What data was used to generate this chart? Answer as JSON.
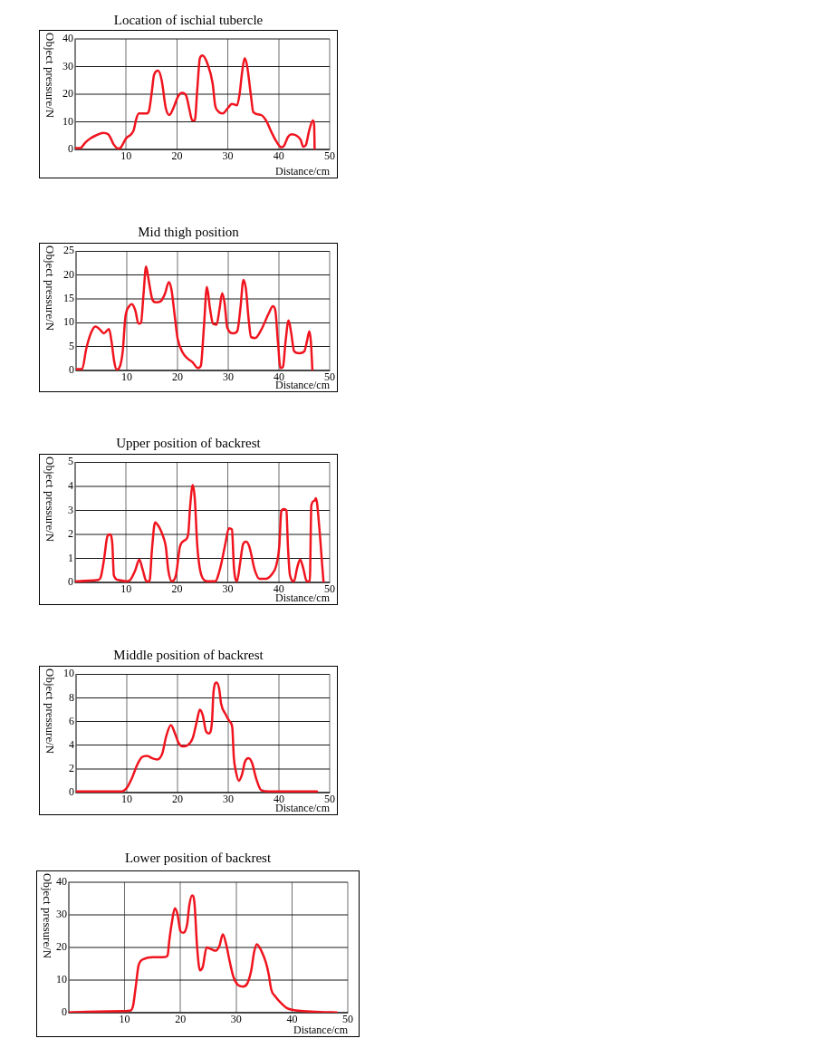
{
  "chart_data": [
    {
      "type": "line",
      "title": "Location of ischial tubercle",
      "xlabel": "Distance/cm",
      "ylabel": "Object pressure/N",
      "color": "#f0141e",
      "grid": true,
      "xlim": [
        0,
        50
      ],
      "xticks": [
        10,
        20,
        30,
        40,
        50
      ],
      "ylim": [
        0,
        40
      ],
      "yticks": [
        0,
        10,
        20,
        30,
        40
      ],
      "x": [
        0,
        1,
        2,
        3,
        4,
        5.5,
        6.5,
        7,
        7.5,
        8.5,
        9,
        10,
        11,
        11.5,
        12,
        12.5,
        14,
        14.5,
        15,
        15.5,
        16.3,
        17,
        17.8,
        18.5,
        19.3,
        20.3,
        21,
        21.8,
        22.5,
        23,
        23.5,
        24,
        24.5,
        25,
        26,
        27,
        27.5,
        28,
        29,
        30,
        30.8,
        31.8,
        32.3,
        32.8,
        33.3,
        33.8,
        34.5,
        35,
        36.5,
        37.5,
        38.5,
        39.5,
        40.5,
        41,
        41.8,
        42.5,
        43.5,
        44.3,
        44.8,
        45.3,
        46,
        46.7,
        46.95,
        47.05
      ],
      "values": [
        0.5,
        0.5,
        2.5,
        4,
        5,
        6,
        5.5,
        4,
        2,
        0.3,
        0.8,
        4,
        5.5,
        7,
        11,
        13,
        13,
        14,
        20,
        27,
        28.5,
        25,
        15,
        12.5,
        15,
        19.5,
        20.5,
        19.5,
        14,
        10.5,
        10.5,
        22,
        33,
        34,
        31,
        24,
        16,
        14,
        13,
        15,
        16.5,
        16,
        20,
        28,
        33,
        30,
        20,
        13.5,
        12.5,
        10.5,
        6.5,
        3,
        0.8,
        1.2,
        4.5,
        5.5,
        5,
        3.5,
        1,
        1.5,
        7,
        10.5,
        9,
        0
      ]
    },
    {
      "type": "line",
      "title": "Mid thigh position",
      "xlabel": "Distance/cm",
      "ylabel": "Object pressure/N",
      "color": "#f0141e",
      "grid": true,
      "xlim": [
        0,
        50
      ],
      "xticks": [
        10,
        20,
        30,
        40,
        50
      ],
      "ylim": [
        0,
        25
      ],
      "yticks": [
        0,
        5,
        10,
        15,
        20,
        25
      ],
      "x": [
        0,
        1.2,
        2,
        3,
        3.8,
        4.5,
        5.5,
        6.5,
        7,
        7.5,
        8,
        8.5,
        9.2,
        9.7,
        10.5,
        11,
        11.7,
        12.3,
        12.8,
        13.3,
        13.8,
        14.3,
        15,
        15.7,
        16.7,
        17.5,
        18.3,
        18.8,
        19.5,
        20,
        21,
        22,
        23,
        24,
        24.6,
        25.2,
        25.8,
        26.4,
        27,
        27.7,
        28.3,
        28.8,
        29.3,
        29.8,
        31,
        31.8,
        32.4,
        33,
        33.5,
        34,
        34.5,
        35.3,
        36.5,
        38,
        38.8,
        39.3,
        39.8,
        40.3,
        40.8,
        41.3,
        41.9,
        42.4,
        43,
        44,
        45,
        45.5,
        46,
        46.3,
        46.6
      ],
      "values": [
        0.3,
        0.3,
        4.5,
        8,
        9.2,
        8.8,
        7.8,
        8.7,
        6,
        2,
        0.2,
        0.5,
        4,
        11,
        13.5,
        13.9,
        12.5,
        9.8,
        10,
        16,
        21.8,
        19,
        15,
        14.3,
        14.5,
        16,
        18.5,
        17,
        11,
        6.8,
        3.8,
        2.5,
        1.7,
        0.5,
        1,
        9,
        17.5,
        13,
        9.8,
        9.6,
        13,
        16.2,
        14,
        9,
        7.8,
        8.3,
        13,
        19,
        17,
        11,
        7,
        6.8,
        8.5,
        12,
        13.5,
        12.5,
        6,
        0.5,
        0.8,
        6,
        10.5,
        8,
        4,
        3.6,
        4,
        6,
        8.2,
        6,
        0
      ]
    },
    {
      "type": "line",
      "title": "Upper position of backrest",
      "xlabel": "Distance/cm",
      "ylabel": "Object pressure/N",
      "color": "#f0141e",
      "grid": true,
      "xlim": [
        0,
        50
      ],
      "xticks": [
        10,
        20,
        30,
        40,
        50
      ],
      "ylim": [
        0,
        5
      ],
      "yticks": [
        0,
        1,
        2,
        3,
        4,
        5
      ],
      "x": [
        0,
        4.5,
        5,
        5.7,
        6.3,
        6.8,
        7.3,
        7.6,
        8.5,
        10,
        10.8,
        11.8,
        12.6,
        13.3,
        14,
        14.6,
        15.1,
        15.7,
        16.5,
        17.3,
        17.8,
        18.3,
        19,
        19.8,
        20.6,
        21.5,
        22.2,
        22.6,
        23.1,
        23.5,
        24,
        24.8,
        26,
        27.5,
        28.5,
        29.5,
        30.2,
        30.8,
        31.2,
        31.8,
        32.4,
        33,
        33.6,
        34.2,
        35.3,
        36.2,
        37.5,
        38.5,
        39.5,
        40.1,
        40.5,
        41,
        41.5,
        41.8,
        42.2,
        43,
        43.6,
        44.2,
        44.8,
        45.5,
        46.1,
        46.4,
        47,
        47.3,
        48,
        48.5,
        48.8
      ],
      "values": [
        0.05,
        0.1,
        0.2,
        1,
        1.9,
        2,
        1.6,
        0.3,
        0.1,
        0.05,
        0.1,
        0.5,
        0.95,
        0.5,
        0.05,
        0.05,
        1.4,
        2.5,
        2.3,
        1.9,
        1.5,
        0.5,
        0.05,
        0.3,
        1.5,
        1.75,
        2,
        3.2,
        4.05,
        3.5,
        1.5,
        0.3,
        0.05,
        0.05,
        0.6,
        1.6,
        2.25,
        2.2,
        0.6,
        0.05,
        0.8,
        1.6,
        1.7,
        1.5,
        0.5,
        0.15,
        0.15,
        0.3,
        0.7,
        1.5,
        2.95,
        3.05,
        3,
        1.5,
        0.3,
        0.05,
        0.6,
        0.95,
        0.6,
        0.05,
        0.05,
        3.2,
        3.4,
        3.5,
        2.2,
        0.8,
        0
      ]
    },
    {
      "type": "line",
      "title": "Middle position of backrest",
      "xlabel": "Distance/cm",
      "ylabel": "Object pressure/N",
      "color": "#f0141e",
      "grid": true,
      "xlim": [
        0,
        50
      ],
      "xticks": [
        10,
        20,
        30,
        40,
        50
      ],
      "ylim": [
        0,
        10
      ],
      "yticks": [
        0,
        2,
        4,
        6,
        8,
        10
      ],
      "x": [
        0,
        9,
        10,
        11,
        12,
        13,
        14,
        15,
        16,
        17,
        17.8,
        18.7,
        19.5,
        20.2,
        21,
        22,
        23,
        23.8,
        24.4,
        25,
        25.6,
        26.2,
        26.8,
        27.1,
        27.7,
        28.2,
        28.6,
        29.5,
        30.3,
        30.8,
        31.1,
        31.5,
        32.1,
        32.7,
        33.3,
        34,
        34.7,
        35.5,
        36.5,
        38,
        47.5
      ],
      "values": [
        0.1,
        0.1,
        0.4,
        1.2,
        2.3,
        3,
        3.1,
        2.9,
        2.8,
        3.3,
        4.8,
        5.7,
        5,
        4.2,
        3.9,
        4,
        4.6,
        6,
        7,
        6.5,
        5.2,
        5,
        6,
        8.5,
        9.3,
        8.8,
        7.5,
        6.6,
        6,
        5.5,
        3,
        1.8,
        1,
        1.5,
        2.6,
        2.9,
        2.5,
        1.2,
        0.2,
        0.1,
        0.1
      ]
    },
    {
      "type": "line",
      "title": "Lower position of backrest",
      "xlabel": "Distance/cm",
      "ylabel": "Object pressure/N",
      "color": "#f0141e",
      "grid": true,
      "xlim": [
        0,
        50
      ],
      "xticks": [
        10,
        20,
        30,
        40,
        50
      ],
      "ylim": [
        0,
        40
      ],
      "yticks": [
        0,
        10,
        20,
        30,
        40
      ],
      "x": [
        0,
        10,
        11,
        11.5,
        12,
        12.5,
        13.5,
        15,
        17,
        17.7,
        18,
        18.5,
        19,
        19.5,
        20,
        20.5,
        21.2,
        21.6,
        22.1,
        22.5,
        23,
        23.5,
        24,
        24.7,
        25.5,
        26.3,
        27,
        27.6,
        28.2,
        28.8,
        29.5,
        30.3,
        31.2,
        32,
        32.7,
        33.2,
        33.7,
        34.5,
        35.3,
        35.8,
        36.3,
        37,
        38,
        39,
        40,
        42,
        45,
        48
      ],
      "values": [
        0.1,
        0.5,
        0.6,
        2,
        8,
        14.5,
        16.5,
        17,
        17,
        17.5,
        22,
        28,
        32,
        30,
        25,
        24.5,
        27,
        33,
        36,
        34,
        20,
        13,
        14,
        20,
        19.5,
        19,
        20.5,
        24,
        21,
        16,
        11,
        8.5,
        8,
        9,
        13,
        18.5,
        21,
        19,
        15.5,
        12,
        7,
        5,
        3,
        1.5,
        0.9,
        0.5,
        0.2,
        0.1
      ]
    }
  ]
}
